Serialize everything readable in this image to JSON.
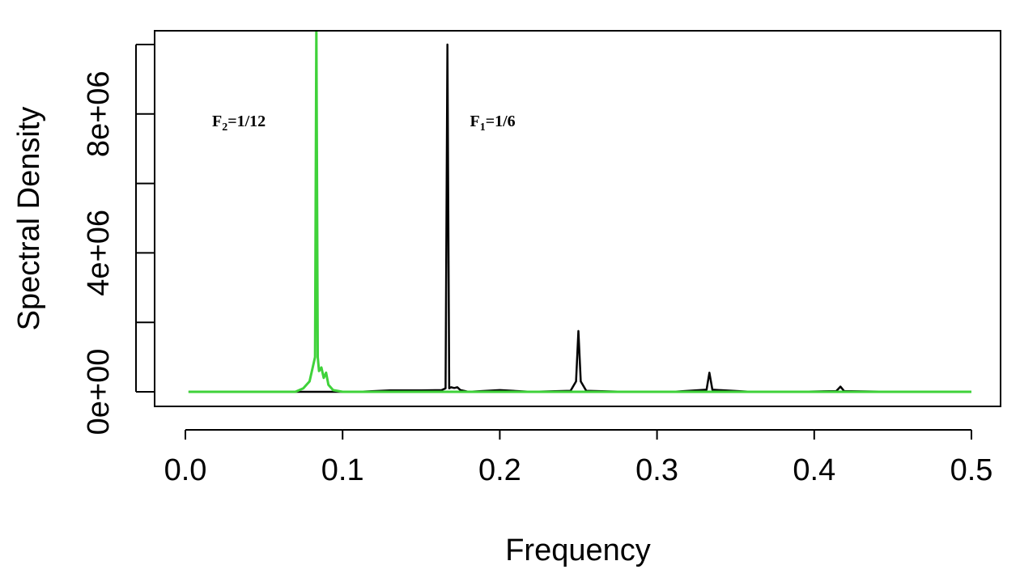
{
  "chart_data": {
    "type": "line",
    "xlabel": "Frequency",
    "ylabel": "Spectral Density",
    "xlim": [
      0.0,
      0.5
    ],
    "ylim": [
      0,
      10000000
    ],
    "x_ticks": [
      {
        "value": 0.0,
        "label": "0.0"
      },
      {
        "value": 0.1,
        "label": "0.1"
      },
      {
        "value": 0.2,
        "label": "0.2"
      },
      {
        "value": 0.3,
        "label": "0.3"
      },
      {
        "value": 0.4,
        "label": "0.4"
      },
      {
        "value": 0.5,
        "label": "0.5"
      }
    ],
    "y_ticks": [
      {
        "value": 0,
        "label": "0e+00"
      },
      {
        "value": 2000000,
        "label": ""
      },
      {
        "value": 4000000,
        "label": "4e+06"
      },
      {
        "value": 6000000,
        "label": ""
      },
      {
        "value": 8000000,
        "label": "8e+06"
      },
      {
        "value": 10000000,
        "label": ""
      }
    ],
    "grid": false,
    "series": [
      {
        "color": "#000000",
        "x": [
          0.002,
          0.11,
          0.13,
          0.15,
          0.163,
          0.1655,
          0.1667,
          0.1678,
          0.169,
          0.171,
          0.173,
          0.175,
          0.18,
          0.2,
          0.22,
          0.245,
          0.2485,
          0.25,
          0.2515,
          0.255,
          0.28,
          0.31,
          0.3315,
          0.3333,
          0.3352,
          0.36,
          0.39,
          0.414,
          0.4167,
          0.419,
          0.45
        ],
        "y": [
          0,
          0,
          40000,
          40000,
          50000,
          100000,
          10000000,
          100000,
          130000,
          110000,
          130000,
          50000,
          0,
          50000,
          0,
          30000,
          300000,
          1750000,
          300000,
          30000,
          0,
          0,
          60000,
          550000,
          60000,
          0,
          0,
          20000,
          150000,
          20000,
          0
        ]
      },
      {
        "color": "#3fd23a",
        "x": [
          0.002,
          0.07,
          0.075,
          0.079,
          0.0825,
          0.0833,
          0.0842,
          0.085,
          0.0865,
          0.088,
          0.0895,
          0.091,
          0.094,
          0.1,
          0.5
        ],
        "y": [
          0,
          0,
          100000,
          300000,
          1000000,
          10500000,
          1000000,
          600000,
          700000,
          400000,
          550000,
          200000,
          50000,
          0,
          0
        ]
      }
    ],
    "annotations": [
      {
        "text": "F",
        "sub": "2",
        "rest": "=1/12",
        "x": 0.017,
        "y": 7650000
      },
      {
        "text": "F",
        "sub": "1",
        "rest": "=1/6",
        "x": 0.181,
        "y": 7650000
      }
    ]
  }
}
